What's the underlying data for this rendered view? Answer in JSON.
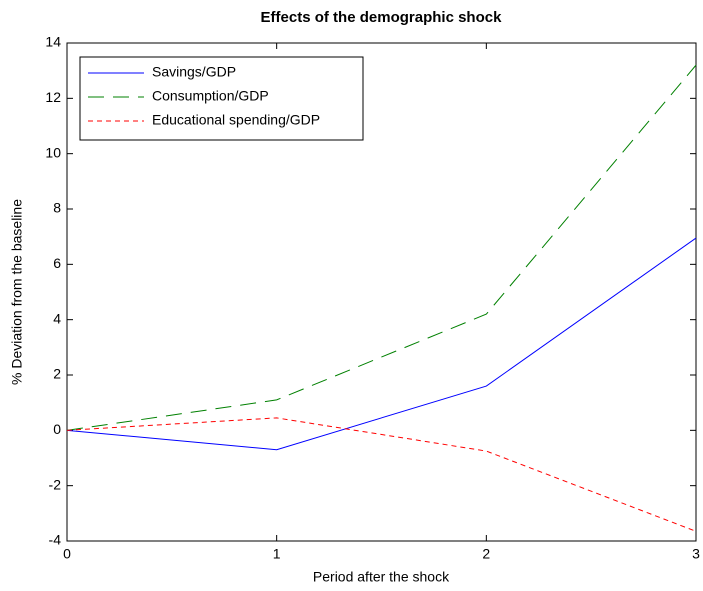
{
  "chart_data": {
    "type": "line",
    "title": "Effects of the demographic shock",
    "x_label": "Period after the shock",
    "y_label": "% Deviation from the baseline",
    "x": [
      0,
      1,
      2,
      3
    ],
    "series": [
      {
        "name": "Savings/GDP",
        "color": "#0000ff",
        "dash": "solid",
        "values": [
          0,
          -0.7,
          1.6,
          6.95
        ]
      },
      {
        "name": "Consumption/GDP",
        "color": "#008000",
        "dash": "long-dash",
        "values": [
          0,
          1.1,
          4.2,
          13.2
        ]
      },
      {
        "name": "Educational spending/GDP",
        "color": "#ff0000",
        "dash": "dash",
        "values": [
          0,
          0.45,
          -0.75,
          -3.65
        ]
      }
    ],
    "xlim": [
      0,
      3
    ],
    "xticks": [
      0,
      1,
      2,
      3
    ],
    "ylim": [
      -4,
      14
    ],
    "yticks": [
      -4,
      -2,
      0,
      2,
      4,
      6,
      8,
      10,
      12,
      14
    ],
    "legend": "upper-left",
    "grid": false
  }
}
